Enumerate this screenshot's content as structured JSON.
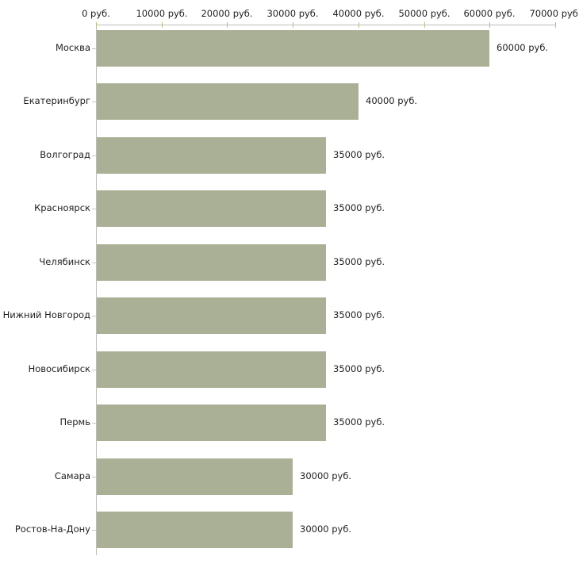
{
  "chart_data": {
    "type": "bar",
    "orientation": "horizontal",
    "title": "",
    "xlabel": "",
    "ylabel": "",
    "unit": "руб.",
    "categories": [
      "Москва",
      "Екатеринбург",
      "Волгоград",
      "Красноярск",
      "Челябинск",
      "Нижний Новгород",
      "Новосибирск",
      "Пермь",
      "Самара",
      "Ростов-На-Дону"
    ],
    "values": [
      60000,
      40000,
      35000,
      35000,
      35000,
      35000,
      35000,
      35000,
      30000,
      30000
    ],
    "value_labels": [
      "60000 руб.",
      "40000 руб.",
      "35000 руб.",
      "35000 руб.",
      "35000 руб.",
      "35000 руб.",
      "35000 руб.",
      "35000 руб.",
      "30000 руб.",
      "30000 руб."
    ],
    "xlim": [
      0,
      70000
    ],
    "x_ticks": [
      0,
      10000,
      20000,
      30000,
      40000,
      50000,
      60000,
      70000
    ],
    "x_tick_labels": [
      "0 руб.",
      "10000 руб.",
      "20000 руб.",
      "30000 руб.",
      "40000 руб.",
      "50000 руб.",
      "60000 руб.",
      "70000 руб."
    ],
    "grid": false,
    "legend": false,
    "axis_position": "top",
    "colors": {
      "bar": "#aab096",
      "axis_line": "#bdbeb7",
      "x_tick": "#b9bc85",
      "y_tick": "#c6c8ab",
      "text": "#1f1f1f",
      "background": "#ffffff"
    }
  }
}
